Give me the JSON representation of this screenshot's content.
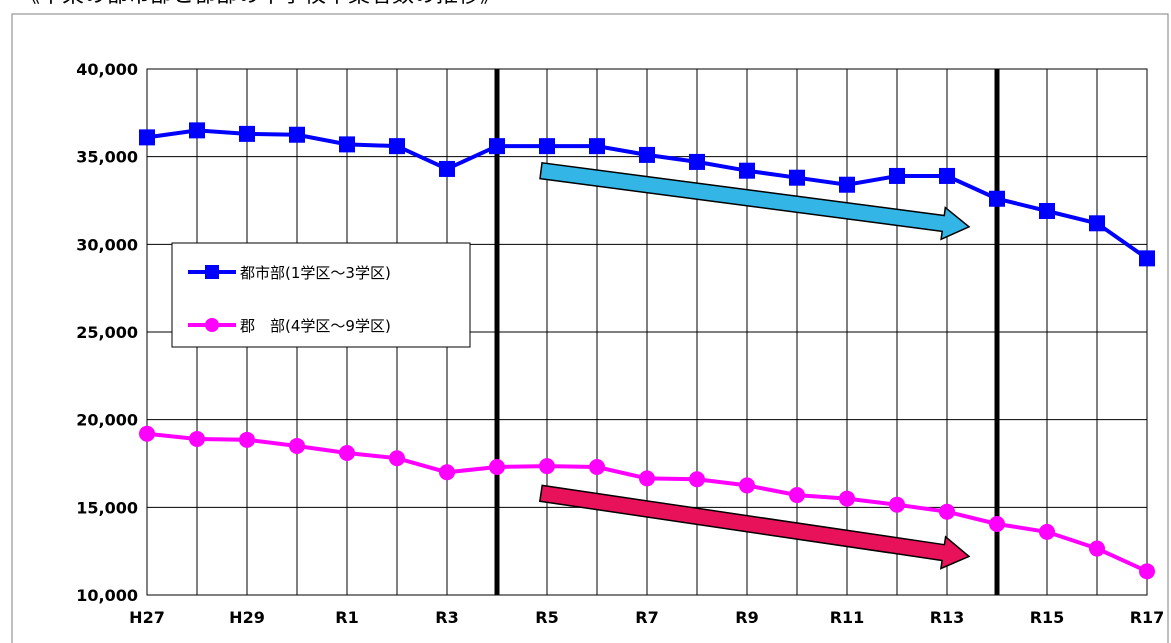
{
  "header": {
    "title_partial": "《中東の都市部と郡部の中学校卒業者数の推移》"
  },
  "chart_data": {
    "type": "line",
    "categories": [
      "H27",
      "H28",
      "H29",
      "H30",
      "R1",
      "R2",
      "R3",
      "R4",
      "R5",
      "R6",
      "R7",
      "R8",
      "R9",
      "R10",
      "R11",
      "R12",
      "R13",
      "R14",
      "R15",
      "R16",
      "R17"
    ],
    "x_tick_labels": [
      "H27",
      "",
      "H29",
      "",
      "R1",
      "",
      "R3",
      "",
      "R5",
      "",
      "R7",
      "",
      "R9",
      "",
      "R11",
      "",
      "R13",
      "",
      "R15",
      "",
      "R17"
    ],
    "y_ticks": [
      10000,
      15000,
      20000,
      25000,
      30000,
      35000,
      40000
    ],
    "y_tick_labels": [
      "10,000",
      "15,000",
      "20,000",
      "25,000",
      "30,000",
      "35,000",
      "40,000"
    ],
    "ylim": [
      10000,
      40000
    ],
    "grid": true,
    "legend_position": "middle-left",
    "series": [
      {
        "name": "都市部(1学区～3学区)",
        "color": "#0000ff",
        "marker": "square",
        "values": [
          36100,
          36500,
          36300,
          36250,
          35700,
          35600,
          34300,
          35600,
          35600,
          35600,
          35100,
          34700,
          34200,
          33800,
          33400,
          33900,
          33900,
          32600,
          31900,
          31200,
          29200
        ]
      },
      {
        "name": "郡　部(4学区～9学区)",
        "color": "#ff00ff",
        "marker": "circle",
        "values": [
          19200,
          18900,
          18850,
          18500,
          18100,
          17800,
          17000,
          17300,
          17350,
          17300,
          16650,
          16600,
          16250,
          15700,
          15500,
          15150,
          14750,
          14050,
          13600,
          12650,
          11350
        ]
      }
    ],
    "vertical_markers_at": [
      "R4",
      "R14"
    ],
    "trend_arrows": [
      {
        "name": "urban-trend",
        "color": "#33b5e5",
        "from": [
          "R5",
          34200
        ],
        "to": [
          "R13",
          31000
        ]
      },
      {
        "name": "rural-trend",
        "color": "#e8125a",
        "from": [
          "R5",
          15800
        ],
        "to": [
          "R13",
          12200
        ]
      }
    ]
  }
}
